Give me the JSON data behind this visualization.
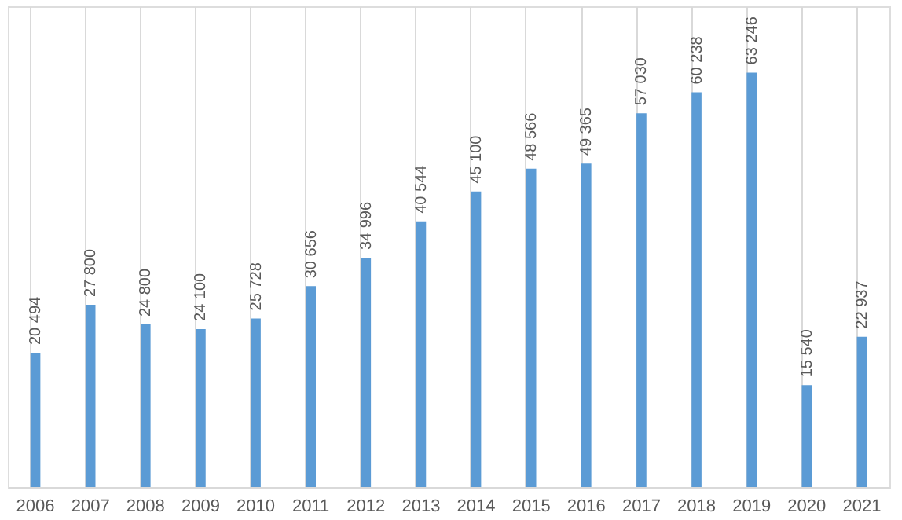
{
  "chart_data": {
    "type": "bar",
    "categories": [
      "2006",
      "2007",
      "2008",
      "2009",
      "2010",
      "2011",
      "2012",
      "2013",
      "2014",
      "2015",
      "2016",
      "2017",
      "2018",
      "2019",
      "2020",
      "2021"
    ],
    "values": [
      20494,
      27800,
      24800,
      24100,
      25728,
      30656,
      34996,
      40544,
      45100,
      48566,
      49365,
      57030,
      60238,
      63246,
      15540,
      22937
    ],
    "value_labels": [
      "20 494",
      "27 800",
      "24 800",
      "24 100",
      "25 728",
      "30 656",
      "34 996",
      "40 544",
      "45 100",
      "48 566",
      "49 365",
      "57 030",
      "60 238",
      "63 246",
      "15 540",
      "22 937"
    ],
    "color": "#5b9bd5",
    "grid": "x"
  }
}
